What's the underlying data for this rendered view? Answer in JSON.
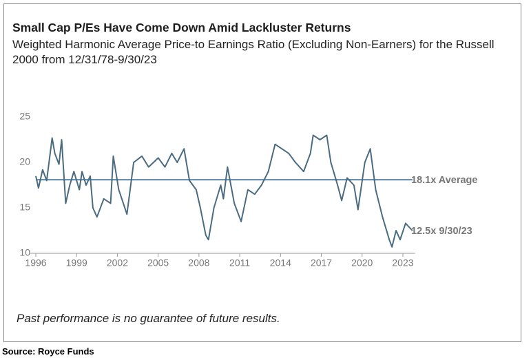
{
  "chart_data": {
    "type": "line",
    "title": "Small Cap P/Es Have Come Down Amid Lackluster Returns",
    "subtitle": "Weighted Harmonic Average Price-to Earnings Ratio (Excluding Non-Earners) for the Russell 2000 from 12/31/78-9/30/23",
    "x": [
      1996.0,
      1996.2,
      1996.5,
      1996.8,
      1997.2,
      1997.4,
      1997.7,
      1997.9,
      1998.2,
      1998.5,
      1998.8,
      1999.2,
      1999.4,
      1999.7,
      2000.0,
      2000.2,
      2000.5,
      2001.0,
      2001.5,
      2001.7,
      2002.1,
      2002.7,
      2003.2,
      2003.8,
      2004.3,
      2005.0,
      2005.5,
      2006.0,
      2006.4,
      2006.9,
      2007.3,
      2007.8,
      2008.1,
      2008.5,
      2008.7,
      2009.1,
      2009.6,
      2009.8,
      2010.1,
      2010.6,
      2011.1,
      2011.6,
      2012.1,
      2012.6,
      2013.1,
      2013.6,
      2014.1,
      2014.6,
      2015.1,
      2015.7,
      2016.2,
      2016.4,
      2016.9,
      2017.4,
      2017.7,
      2018.2,
      2018.5,
      2018.9,
      2019.4,
      2019.7,
      2020.2,
      2020.6,
      2021.0,
      2021.5,
      2022.0,
      2022.2,
      2022.5,
      2022.8,
      2023.2,
      2023.7
    ],
    "values": [
      18.5,
      17.2,
      19.2,
      18.0,
      22.7,
      21.0,
      19.8,
      22.5,
      15.5,
      17.5,
      19.0,
      17.0,
      19.0,
      17.5,
      18.5,
      15.0,
      14.0,
      16.0,
      15.5,
      20.7,
      17.0,
      14.3,
      20.0,
      20.7,
      19.5,
      20.5,
      19.5,
      21.0,
      20.0,
      21.5,
      18.0,
      17.0,
      15.0,
      12.0,
      11.5,
      15.0,
      17.5,
      16.0,
      19.5,
      15.5,
      13.5,
      17.0,
      16.5,
      17.5,
      19.0,
      22.0,
      21.5,
      21.0,
      20.0,
      19.0,
      21.0,
      23.0,
      22.5,
      23.0,
      20.0,
      17.5,
      15.8,
      18.3,
      17.5,
      14.8,
      20.0,
      21.5,
      17.0,
      14.0,
      11.5,
      10.7,
      12.5,
      11.5,
      13.3,
      12.5
    ],
    "color": "#4a6b80",
    "xlim": [
      1996,
      2023.7
    ],
    "xticks": [
      1996,
      1999,
      2002,
      2005,
      2008,
      2011,
      2014,
      2017,
      2020,
      2023
    ],
    "ylim": [
      10,
      25
    ],
    "yticks": [
      10,
      15,
      20,
      25
    ],
    "average": {
      "value": 18.1,
      "label": "18.1x Average",
      "color": "#5b86a6"
    },
    "end_label": "12.5x 9/30/23"
  },
  "footnote": "Past performance is no guarantee of future results.",
  "source": "Source: Royce Funds"
}
